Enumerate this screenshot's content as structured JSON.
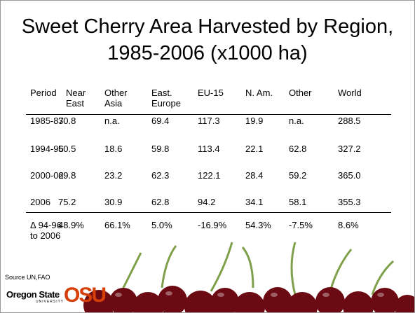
{
  "title": "Sweet Cherry Area Harvested by Region, 1985-2006 (x1000 ha)",
  "table": {
    "header": [
      "Period",
      "Near East",
      "Other Asia",
      "East. Europe",
      "EU-15",
      "N. Am.",
      "Other",
      "World"
    ],
    "rows": [
      [
        "1985-87",
        "30.8",
        "n.a.",
        "69.4",
        "117.3",
        "19.9",
        "n.a.",
        "288.5"
      ],
      [
        "1994-96",
        "50.5",
        "18.6",
        "59.8",
        "113.4",
        "22.1",
        "62.8",
        "327.2"
      ],
      [
        "2000-02",
        "69.8",
        "23.2",
        "62.3",
        "122.1",
        "28.4",
        "59.2",
        "365.0"
      ],
      [
        "2006",
        "75.2",
        "30.9",
        "62.8",
        "94.2",
        "34.1",
        "58.1",
        "355.3"
      ],
      [
        "Δ 94-96 to 2006",
        "48.9%",
        "66.1%",
        "5.0%",
        "-16.9%",
        "54.3%",
        "-7.5%",
        "8.6%"
      ]
    ]
  },
  "source": "Source UN,FAO",
  "logo": {
    "name": "Oregon State",
    "sub": "UNIVERSITY",
    "mark": "OSU"
  }
}
